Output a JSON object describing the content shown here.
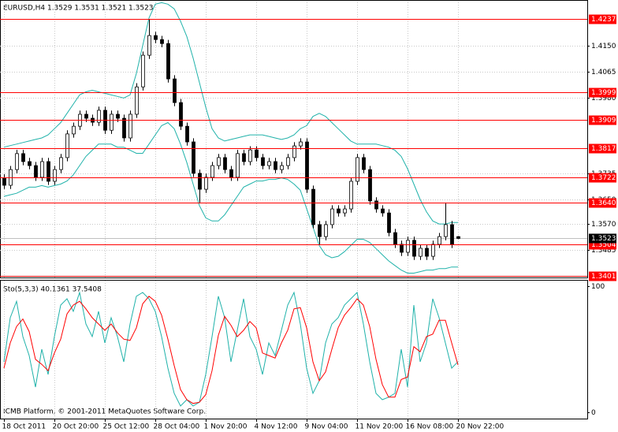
{
  "chart_data": [
    {
      "type": "candlestick",
      "title": "EURUSD,H4  1.3529 1.3531 1.3521 1.3523",
      "categories": [
        "18 Oct 2011",
        null,
        null,
        null,
        null,
        null,
        null,
        null,
        "20 Oct 20:00",
        null,
        null,
        null,
        null,
        null,
        null,
        null,
        "25 Oct 12:00",
        null,
        null,
        null,
        null,
        null,
        null,
        null,
        "28 Oct 04:00",
        null,
        null,
        null,
        null,
        null,
        null,
        null,
        "1 Nov 20:00",
        null,
        null,
        null,
        null,
        null,
        null,
        null,
        "4 Nov 12:00",
        null,
        null,
        null,
        null,
        null,
        null,
        null,
        "9 Nov 04:00",
        null,
        null,
        null,
        null,
        null,
        null,
        null,
        "11 Nov 20:00",
        null,
        null,
        null,
        null,
        null,
        null,
        null,
        "16 Nov 08:00",
        null,
        null,
        null,
        null,
        null,
        null,
        null,
        "20 Nov 22:00"
      ],
      "open": [
        1.372,
        1.3696,
        1.3747,
        1.3799,
        1.3773,
        1.376,
        1.3722,
        1.3773,
        1.3709,
        1.3747,
        1.3786,
        1.3863,
        1.3888,
        1.3927,
        1.3914,
        1.3901,
        1.394,
        1.3875,
        1.3927,
        1.3914,
        1.385,
        1.3927,
        1.4016,
        1.4119,
        1.4183,
        1.417,
        1.4157,
        1.4042,
        1.3965,
        1.3888,
        1.3837,
        1.3735,
        1.3683,
        1.3722,
        1.376,
        1.3786,
        1.3747,
        1.3722,
        1.3799,
        1.3773,
        1.3811,
        1.3786,
        1.376,
        1.3773,
        1.3747,
        1.376,
        1.3786,
        1.3824,
        1.3837,
        1.3683,
        1.3568,
        1.3529,
        1.3568,
        1.3619,
        1.3606,
        1.3619,
        1.3709,
        1.3786,
        1.3747,
        1.3645,
        1.3619,
        1.3606,
        1.3542,
        1.3504,
        1.3478,
        1.3517,
        1.3465,
        1.3491,
        1.3465,
        1.3504,
        1.3529,
        1.3568,
        1.3529
      ],
      "high": [
        1.3732,
        1.3759,
        1.3811,
        1.3811,
        1.3785,
        1.3772,
        1.3785,
        1.3785,
        1.3759,
        1.3798,
        1.3875,
        1.39,
        1.3939,
        1.3939,
        1.3926,
        1.3952,
        1.3952,
        1.3939,
        1.3939,
        1.3926,
        1.3939,
        1.4028,
        1.4131,
        1.4237,
        1.4195,
        1.4182,
        1.4169,
        1.4054,
        1.3977,
        1.39,
        1.3849,
        1.3747,
        1.3734,
        1.3772,
        1.3798,
        1.3798,
        1.3759,
        1.3811,
        1.3811,
        1.3823,
        1.3823,
        1.3798,
        1.3785,
        1.3785,
        1.3772,
        1.3798,
        1.3836,
        1.3849,
        1.3849,
        1.3695,
        1.358,
        1.358,
        1.3631,
        1.3631,
        1.3631,
        1.3721,
        1.3798,
        1.3798,
        1.3759,
        1.3657,
        1.3631,
        1.3618,
        1.3554,
        1.3516,
        1.3529,
        1.3529,
        1.3503,
        1.3503,
        1.3516,
        1.3541,
        1.364,
        1.358,
        1.3531
      ],
      "low": [
        1.3684,
        1.3684,
        1.3735,
        1.3761,
        1.3748,
        1.371,
        1.371,
        1.3697,
        1.3697,
        1.3735,
        1.3774,
        1.3851,
        1.3876,
        1.3902,
        1.3889,
        1.3889,
        1.3863,
        1.3863,
        1.3902,
        1.3838,
        1.3838,
        1.3915,
        1.4004,
        1.4107,
        1.4158,
        1.4145,
        1.403,
        1.3953,
        1.3876,
        1.3825,
        1.3723,
        1.364,
        1.3671,
        1.371,
        1.3748,
        1.3735,
        1.371,
        1.371,
        1.3761,
        1.3761,
        1.3774,
        1.3748,
        1.3748,
        1.3735,
        1.3735,
        1.3748,
        1.3774,
        1.3812,
        1.3671,
        1.3556,
        1.3504,
        1.3517,
        1.3556,
        1.3594,
        1.3594,
        1.3607,
        1.3697,
        1.3735,
        1.3633,
        1.3607,
        1.3594,
        1.353,
        1.3492,
        1.3466,
        1.3466,
        1.3453,
        1.3453,
        1.3453,
        1.3453,
        1.3492,
        1.3517,
        1.3492,
        1.3521
      ],
      "close": [
        1.3696,
        1.3747,
        1.3799,
        1.3773,
        1.376,
        1.3722,
        1.3773,
        1.3709,
        1.3747,
        1.3786,
        1.3863,
        1.3888,
        1.3927,
        1.3914,
        1.3901,
        1.394,
        1.3875,
        1.3927,
        1.3914,
        1.385,
        1.3927,
        1.4016,
        1.4119,
        1.4183,
        1.417,
        1.4157,
        1.4042,
        1.3965,
        1.3888,
        1.3837,
        1.3735,
        1.3683,
        1.3722,
        1.376,
        1.3786,
        1.3747,
        1.3722,
        1.3799,
        1.3773,
        1.3811,
        1.3786,
        1.376,
        1.3773,
        1.3747,
        1.376,
        1.3786,
        1.3824,
        1.3837,
        1.3683,
        1.3568,
        1.3529,
        1.3568,
        1.3619,
        1.3606,
        1.3619,
        1.3709,
        1.3786,
        1.3747,
        1.3645,
        1.3619,
        1.3606,
        1.3542,
        1.3504,
        1.3478,
        1.3517,
        1.3465,
        1.3491,
        1.3465,
        1.3504,
        1.3529,
        1.3568,
        1.3504,
        1.3523
      ],
      "overlays": [
        {
          "color": "#20b2aa",
          "values": [
            1.382,
            1.3825,
            1.383,
            1.3835,
            1.384,
            1.3845,
            1.385,
            1.386,
            1.388,
            1.39,
            1.393,
            1.396,
            1.399,
            1.4,
            1.4005,
            1.4,
            1.3995,
            1.399,
            1.3985,
            1.398,
            1.399,
            1.406,
            1.415,
            1.424,
            1.4285,
            1.429,
            1.4285,
            1.427,
            1.423,
            1.418,
            1.411,
            1.403,
            1.395,
            1.388,
            1.385,
            1.384,
            1.3845,
            1.385,
            1.3855,
            1.386,
            1.386,
            1.386,
            1.3855,
            1.385,
            1.3845,
            1.385,
            1.386,
            1.388,
            1.389,
            1.392,
            1.393,
            1.392,
            1.39,
            1.388,
            1.386,
            1.384,
            1.383,
            1.383,
            1.383,
            1.383,
            1.3825,
            1.382,
            1.381,
            1.379,
            1.375,
            1.37,
            1.365,
            1.361,
            1.358,
            1.357,
            1.357,
            1.3575,
            1.3575
          ]
        },
        {
          "color": "#20b2aa",
          "values": [
            1.366,
            1.3665,
            1.367,
            1.368,
            1.369,
            1.369,
            1.3695,
            1.369,
            1.3695,
            1.37,
            1.371,
            1.373,
            1.376,
            1.379,
            1.381,
            1.383,
            1.383,
            1.383,
            1.382,
            1.382,
            1.381,
            1.38,
            1.38,
            1.383,
            1.386,
            1.389,
            1.39,
            1.388,
            1.383,
            1.377,
            1.37,
            1.363,
            1.359,
            1.358,
            1.358,
            1.36,
            1.363,
            1.366,
            1.369,
            1.37,
            1.371,
            1.371,
            1.3715,
            1.3715,
            1.372,
            1.3715,
            1.37,
            1.368,
            1.362,
            1.356,
            1.35,
            1.347,
            1.346,
            1.3465,
            1.348,
            1.35,
            1.352,
            1.352,
            1.351,
            1.349,
            1.347,
            1.345,
            1.3435,
            1.342,
            1.341,
            1.341,
            1.3415,
            1.342,
            1.342,
            1.3425,
            1.3425,
            1.343,
            1.343
          ]
        }
      ],
      "levels": [
        {
          "value": 1.4237,
          "label": "1.4237"
        },
        {
          "value": 1.3999,
          "label": "1.3999"
        },
        {
          "value": 1.3909,
          "label": "1.3909"
        },
        {
          "value": 1.3817,
          "label": "1.3817"
        },
        {
          "value": 1.3722,
          "label": "1.3722"
        },
        {
          "value": 1.364,
          "label": "1.3640"
        },
        {
          "value": 1.3504,
          "label": "1.3504"
        },
        {
          "value": 1.3401,
          "label": "1.3401"
        }
      ],
      "level_color": "#ff0000",
      "last_price": {
        "value": 1.3523,
        "label": "1.3523"
      },
      "ylim": [
        1.3396,
        1.4291
      ],
      "yticks": [
        {
          "value": 1.415,
          "label": "1.4150"
        },
        {
          "value": 1.4065,
          "label": "1.4065"
        },
        {
          "value": 1.398,
          "label": "1.3980"
        },
        {
          "value": 1.3735,
          "label": "1.3735"
        },
        {
          "value": 1.365,
          "label": "1.3650"
        },
        {
          "value": 1.357,
          "label": "1.3570"
        },
        {
          "value": 1.3485,
          "label": "1.3485"
        }
      ],
      "grid": true
    },
    {
      "type": "line",
      "title": "Sto(5,3,3) 40.1361 37.5408",
      "series": [
        {
          "color": "#20b2aa",
          "values": [
            40,
            75,
            88,
            60,
            45,
            20,
            50,
            30,
            60,
            85,
            90,
            80,
            95,
            70,
            60,
            80,
            55,
            75,
            60,
            40,
            70,
            92,
            95,
            90,
            80,
            60,
            35,
            15,
            5,
            10,
            5,
            8,
            30,
            60,
            92,
            75,
            40,
            65,
            90,
            60,
            50,
            30,
            55,
            45,
            65,
            85,
            95,
            70,
            35,
            15,
            25,
            55,
            70,
            75,
            85,
            90,
            95,
            70,
            40,
            15,
            10,
            12,
            15,
            50,
            20,
            85,
            40,
            55,
            90,
            75,
            55,
            35,
            40.1361
          ]
        },
        {
          "color": "#ff0000",
          "values": [
            35,
            55,
            68,
            74,
            64,
            42,
            38,
            33,
            47,
            58,
            78,
            85,
            88,
            82,
            75,
            70,
            65,
            70,
            63,
            58,
            57,
            67,
            86,
            92,
            88,
            77,
            58,
            37,
            18,
            10,
            7,
            8,
            14,
            33,
            61,
            76,
            69,
            60,
            65,
            72,
            67,
            47,
            45,
            43,
            55,
            65,
            82,
            83,
            67,
            40,
            25,
            32,
            50,
            67,
            77,
            83,
            90,
            85,
            68,
            42,
            22,
            12,
            12,
            26,
            28,
            52,
            48,
            60,
            62,
            73,
            73,
            55,
            37.5408
          ]
        }
      ],
      "ylim": [
        -4.4,
        104.4
      ],
      "yticks": [
        0,
        100
      ],
      "footer": "ICMB Platform, © 2001-2011 MetaQuotes Software Corp."
    }
  ]
}
